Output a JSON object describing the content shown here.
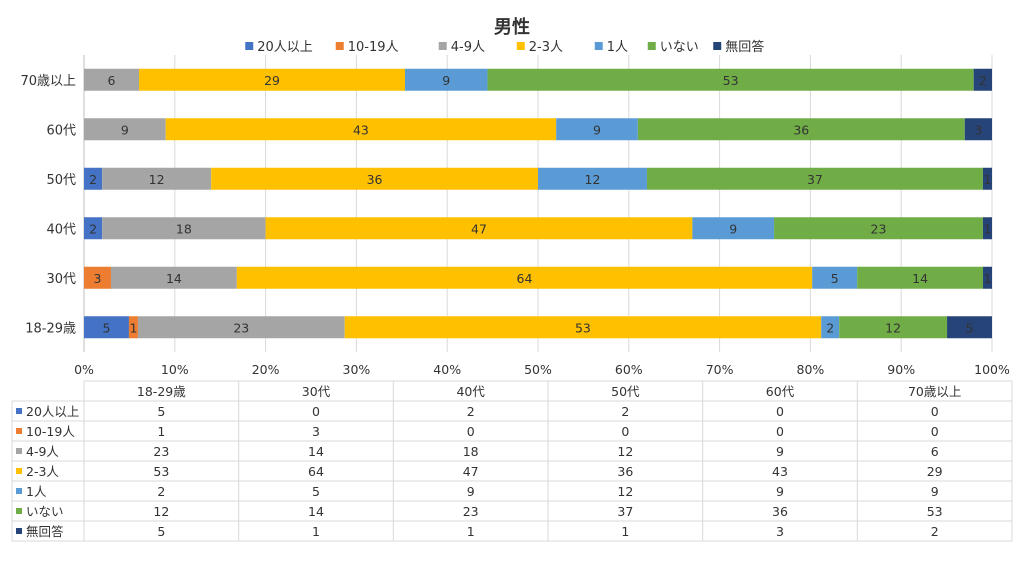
{
  "chart_data": {
    "type": "bar",
    "orientation": "horizontal",
    "stacked": "percent",
    "title": "男性",
    "legend_position": "top",
    "categories": [
      "18-29歳",
      "30代",
      "40代",
      "50代",
      "60代",
      "70歳以上"
    ],
    "series": [
      {
        "name": "20人以上",
        "color": "#4472C4",
        "values": [
          5,
          0,
          2,
          2,
          0,
          0
        ]
      },
      {
        "name": "10-19人",
        "color": "#ED7D31",
        "values": [
          1,
          3,
          0,
          0,
          0,
          0
        ]
      },
      {
        "name": "4-9人",
        "color": "#A5A5A5",
        "values": [
          23,
          14,
          18,
          12,
          9,
          6
        ]
      },
      {
        "name": "2-3人",
        "color": "#FFC000",
        "values": [
          53,
          64,
          47,
          36,
          43,
          29
        ]
      },
      {
        "name": "1人",
        "color": "#5B9BD5",
        "values": [
          2,
          5,
          9,
          12,
          9,
          9
        ]
      },
      {
        "name": "いない",
        "color": "#70AD47",
        "values": [
          12,
          14,
          23,
          37,
          36,
          53
        ]
      },
      {
        "name": "無回答",
        "color": "#264478",
        "values": [
          5,
          1,
          1,
          1,
          3,
          2
        ]
      }
    ],
    "x_ticks": [
      "0%",
      "10%",
      "20%",
      "30%",
      "40%",
      "50%",
      "60%",
      "70%",
      "80%",
      "90%",
      "100%"
    ],
    "xlim": [
      0,
      100
    ],
    "grid": true,
    "data_table": true
  }
}
